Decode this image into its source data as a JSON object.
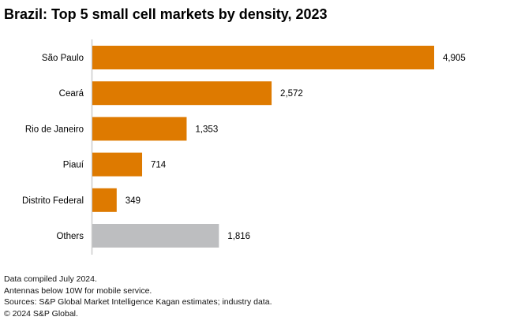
{
  "chart_data": {
    "type": "bar",
    "orientation": "horizontal",
    "title": "Brazil: Top 5 small cell markets by density, 2023",
    "categories": [
      "São Paulo",
      "Ceará",
      "Rio de Janeiro",
      "Piauí",
      "Distrito Federal",
      "Others"
    ],
    "values": [
      4905,
      2572,
      1353,
      714,
      349,
      1816
    ],
    "data_labels": [
      "4,905",
      "2,572",
      "1,353",
      "714",
      "349",
      "1,816"
    ],
    "bar_colors": [
      "#DE7A00",
      "#DE7A00",
      "#DE7A00",
      "#DE7A00",
      "#DE7A00",
      "#BDBEC0"
    ],
    "xlabel": "",
    "ylabel": "",
    "xlim": [
      0,
      4905
    ],
    "grid": false,
    "legend": "none"
  },
  "notes": [
    "Data compiled July 2024.",
    "Antennas below 10W for mobile service.",
    "Sources: S&P Global Market Intelligence Kagan estimates; industry data.",
    "© 2024 S&P Global."
  ],
  "colors": {
    "axis": "#CCCCCC",
    "text": "#000000"
  }
}
